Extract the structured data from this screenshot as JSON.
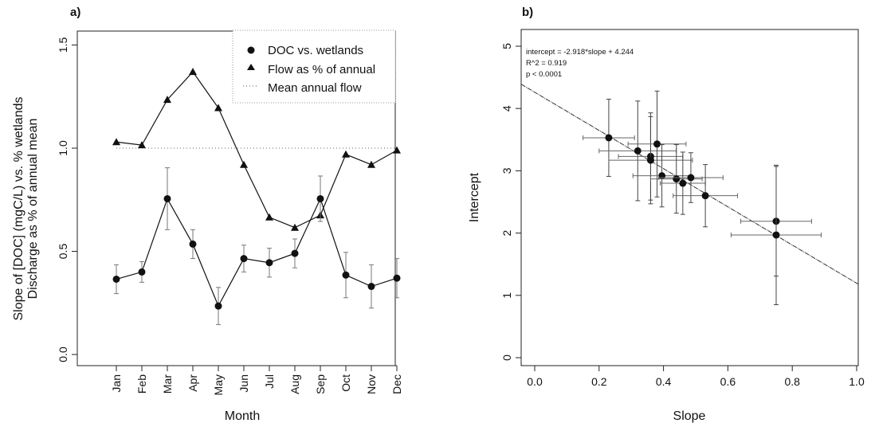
{
  "chart_data": [
    {
      "panel": "a)",
      "type": "line",
      "xlabel": "Month",
      "ylabel": [
        "Slope of [DOC] (mgC/L) vs. % wetlands",
        "Discharge as % of annual mean"
      ],
      "categories": [
        "Jan",
        "Feb",
        "Mar",
        "Apr",
        "May",
        "Jun",
        "Jul",
        "Aug",
        "Sep",
        "Oct",
        "Nov",
        "Dec"
      ],
      "ylim": [
        0,
        1.5
      ],
      "yticks": [
        "0.0",
        "0.5",
        "1.0",
        "1.5"
      ],
      "legend_position": "top-right",
      "series": [
        {
          "name": "DOC vs. wetlands",
          "marker": "circle",
          "values": [
            0.365,
            0.4,
            0.755,
            0.535,
            0.235,
            0.465,
            0.445,
            0.49,
            0.755,
            0.385,
            0.33,
            0.37
          ],
          "error": [
            0.07,
            0.05,
            0.15,
            0.07,
            0.09,
            0.065,
            0.07,
            0.07,
            0.11,
            0.11,
            0.105,
            0.095
          ]
        },
        {
          "name": "Flow as % of annual",
          "marker": "triangle",
          "values": [
            1.03,
            1.015,
            1.235,
            1.37,
            1.195,
            0.92,
            0.665,
            0.615,
            0.675,
            0.97,
            0.92,
            0.99
          ]
        },
        {
          "name": "Mean annual flow",
          "marker": "dotted-line",
          "values": [
            1.0,
            1.0,
            1.0,
            1.0,
            1.0,
            1.0,
            1.0,
            1.0,
            1.0,
            1.0,
            1.0,
            1.0
          ]
        }
      ]
    },
    {
      "panel": "b)",
      "type": "scatter",
      "xlabel": "Slope",
      "ylabel": "Intercept",
      "xlim": [
        -0.05,
        1.05
      ],
      "ylim": [
        -0.3,
        5.3
      ],
      "xticks": [
        "0.0",
        "0.2",
        "0.4",
        "0.6",
        "0.8",
        "1.0"
      ],
      "yticks": [
        "0",
        "1",
        "2",
        "3",
        "4",
        "5"
      ],
      "annotations": [
        "intercept = -2.918*slope + 4.244",
        "R^2 = 0.919",
        "p < 0.0001"
      ],
      "fit_line": {
        "slope": -2.918,
        "intercept": 4.244
      },
      "points": [
        {
          "x": 0.23,
          "y": 3.53,
          "xerr": 0.08,
          "yerr": 0.62
        },
        {
          "x": 0.32,
          "y": 3.32,
          "xerr": 0.12,
          "yerr": 0.8
        },
        {
          "x": 0.36,
          "y": 3.23,
          "xerr": 0.1,
          "yerr": 0.7
        },
        {
          "x": 0.36,
          "y": 3.17,
          "xerr": 0.13,
          "yerr": 0.7
        },
        {
          "x": 0.38,
          "y": 3.43,
          "xerr": 0.09,
          "yerr": 0.85
        },
        {
          "x": 0.395,
          "y": 2.92,
          "xerr": 0.09,
          "yerr": 0.5
        },
        {
          "x": 0.44,
          "y": 2.87,
          "xerr": 0.08,
          "yerr": 0.55
        },
        {
          "x": 0.46,
          "y": 2.8,
          "xerr": 0.07,
          "yerr": 0.5
        },
        {
          "x": 0.485,
          "y": 2.89,
          "xerr": 0.1,
          "yerr": 0.4
        },
        {
          "x": 0.53,
          "y": 2.6,
          "xerr": 0.1,
          "yerr": 0.5
        },
        {
          "x": 0.75,
          "y": 2.19,
          "xerr": 0.11,
          "yerr": 0.88
        },
        {
          "x": 0.75,
          "y": 1.97,
          "xerr": 0.14,
          "yerr": 1.12
        }
      ]
    }
  ]
}
